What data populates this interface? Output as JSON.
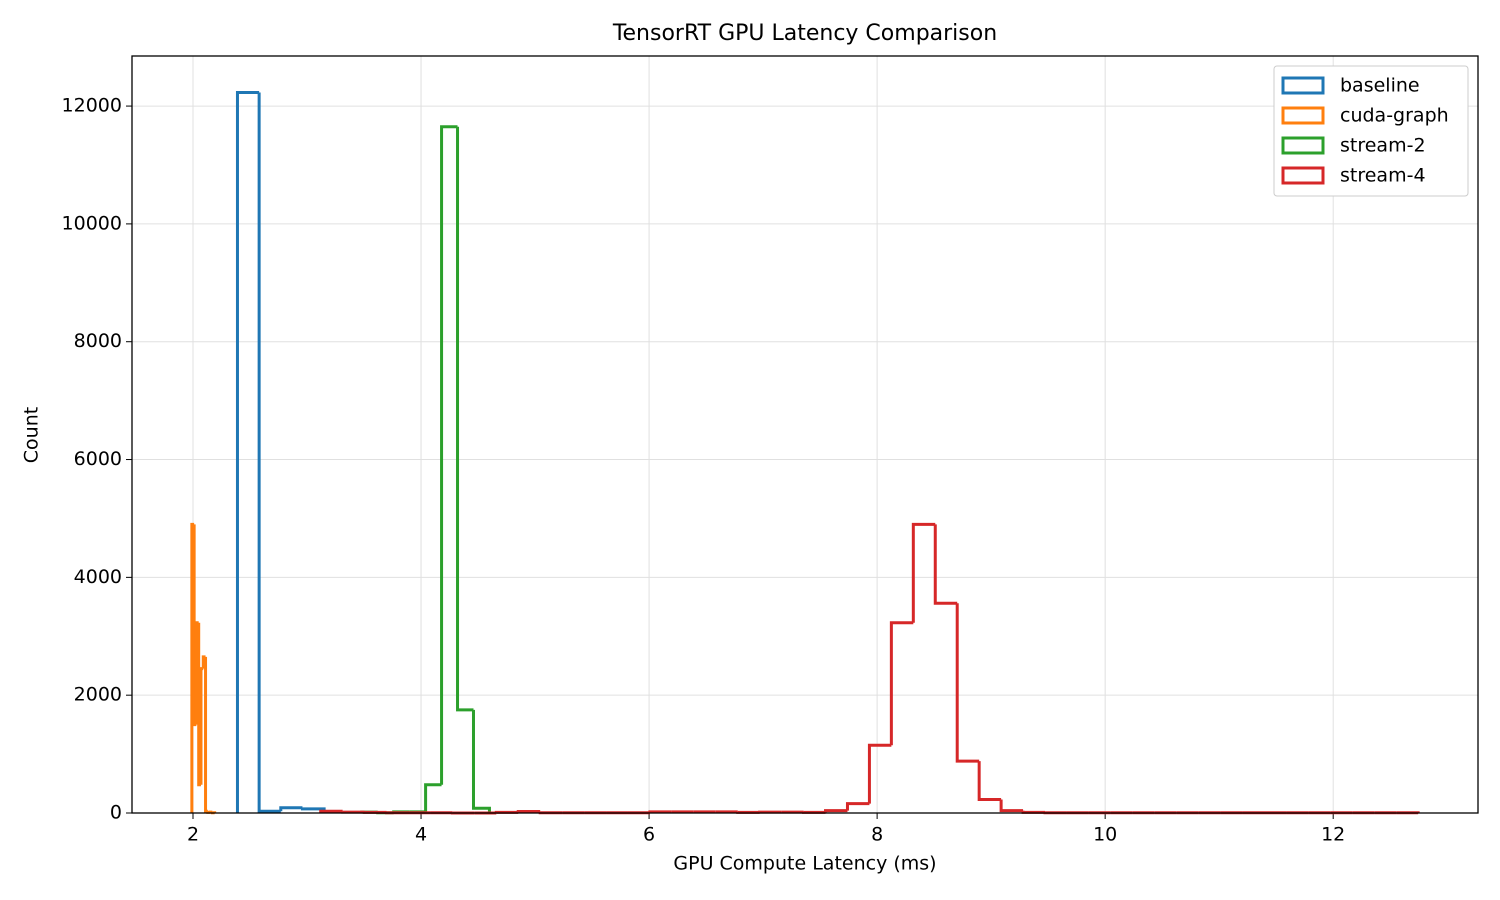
{
  "chart_data": {
    "type": "histogram",
    "histtype": "step",
    "title": "TensorRT GPU Latency Comparison",
    "x_label": "GPU Compute Latency (ms)",
    "y_label": "Count",
    "xlim": [
      1.465,
      13.27
    ],
    "ylim": [
      0,
      12850
    ],
    "xticks": [
      2,
      4,
      6,
      8,
      10,
      12
    ],
    "yticks": [
      0,
      2000,
      4000,
      6000,
      8000,
      10000,
      12000
    ],
    "grid": true,
    "legend": "upper right",
    "series": [
      {
        "name": "baseline",
        "color": "#1f77b4",
        "bins": [
          2.39,
          2.58,
          2.77,
          2.96,
          3.15
        ],
        "values": [
          12230,
          30,
          90,
          70
        ]
      },
      {
        "name": "cuda-graph",
        "color": "#ff7f0e",
        "bins": [
          1.99,
          2.01,
          2.03,
          2.05,
          2.07,
          2.09,
          2.11,
          2.13,
          2.15,
          2.17,
          2.19
        ],
        "values": [
          4900,
          1500,
          3230,
          480,
          2450,
          2650,
          30,
          10,
          15,
          5
        ]
      },
      {
        "name": "stream-2",
        "color": "#2ca02c",
        "bins": [
          3.48,
          3.62,
          3.76,
          3.9,
          4.04,
          4.18,
          4.32,
          4.46,
          4.6
        ],
        "values": [
          15,
          5,
          20,
          20,
          480,
          11650,
          1750,
          80
        ]
      },
      {
        "name": "stream-4",
        "color": "#d62728",
        "bins": [
          3.12,
          3.3125,
          3.505,
          3.6975,
          3.89,
          4.0825,
          4.275,
          4.4675,
          4.66,
          4.8525,
          5.045,
          5.2375,
          5.43,
          5.6225,
          5.815,
          6.0075,
          6.2,
          6.3925,
          6.585,
          6.7775,
          6.97,
          7.1625,
          7.355,
          7.5475,
          7.74,
          7.9325,
          8.125,
          8.3175,
          8.51,
          8.7025,
          8.895,
          9.0875,
          9.28,
          9.4725,
          9.665,
          9.8575,
          10.05,
          10.2425,
          10.435,
          10.6275,
          10.82,
          11.0125,
          11.205,
          11.3975,
          11.59,
          11.7825,
          11.975,
          12.1675,
          12.36,
          12.5525,
          12.745
        ],
        "values": [
          30,
          15,
          10,
          5,
          5,
          5,
          0,
          0,
          10,
          25,
          5,
          5,
          5,
          5,
          5,
          20,
          20,
          20,
          20,
          10,
          15,
          15,
          10,
          40,
          160,
          1150,
          3230,
          4900,
          3560,
          880,
          230,
          40,
          10,
          5,
          5,
          5,
          5,
          5,
          5,
          5,
          5,
          5,
          5,
          5,
          5,
          5,
          5,
          5,
          5,
          5
        ]
      }
    ]
  }
}
